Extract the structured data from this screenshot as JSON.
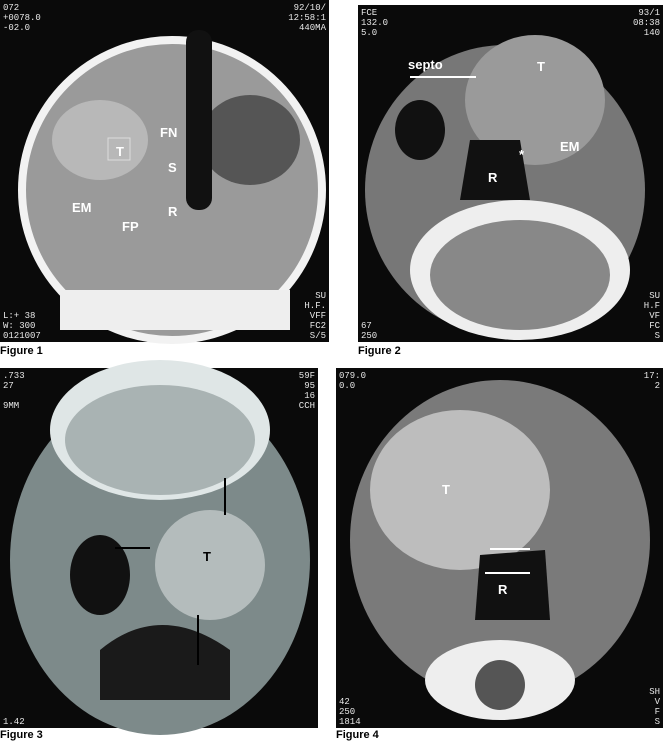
{
  "figures": [
    {
      "caption": "Figure 1",
      "corners": {
        "tl": [
          "072",
          "+0078.0",
          "-02.0"
        ],
        "tr": [
          "92/10/",
          "12:58:1",
          "440MA"
        ],
        "bl": [
          "L:+ 38",
          "W: 300",
          "0121007"
        ],
        "br": [
          "SU",
          "H.F.",
          "VFF",
          "FC2",
          "S/5"
        ]
      },
      "labels": [
        "T",
        "FN",
        "S",
        "EM",
        "FP",
        "R"
      ]
    },
    {
      "caption": "Figure 2",
      "corners": {
        "tl": [
          "FCE",
          "132.0",
          "5.0"
        ],
        "tr": [
          "93/1",
          "08:38",
          "140"
        ],
        "bl": [
          "67",
          "250"
        ],
        "br": [
          "SU",
          "H.F",
          "VF",
          "FC",
          "S"
        ]
      },
      "labels": [
        "septo",
        "T",
        "EM",
        "*",
        "R"
      ]
    },
    {
      "caption": "Figure 3",
      "corners": {
        "tl": [
          ".733",
          "27",
          "",
          "9MM"
        ],
        "tr": [
          "59F",
          "95",
          "16",
          "CCH"
        ],
        "bl": [
          "1.42"
        ],
        "br": []
      },
      "labels": [
        "T"
      ]
    },
    {
      "caption": "Figure 4",
      "corners": {
        "tl": [
          "079.0",
          "0.0"
        ],
        "tr": [
          "17:",
          "2"
        ],
        "bl": [
          "42",
          "250",
          "1814"
        ],
        "br": [
          "SH",
          "V",
          "F",
          "S"
        ]
      },
      "labels": [
        "T",
        "R"
      ]
    }
  ]
}
